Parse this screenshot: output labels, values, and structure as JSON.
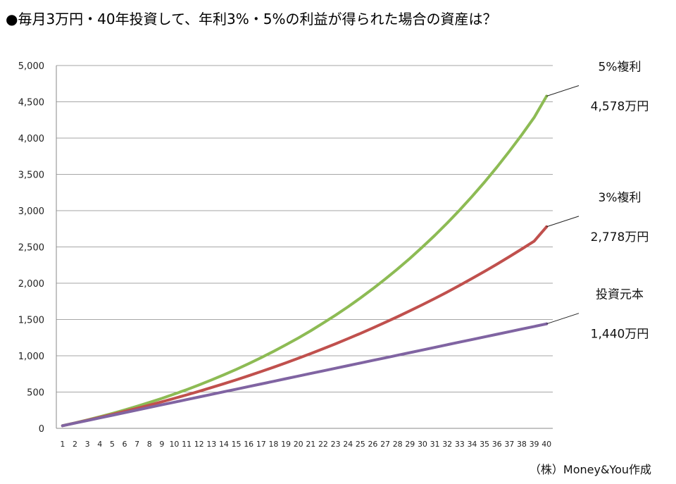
{
  "chart_data": {
    "type": "line",
    "title": "●毎月3万円・40年投資して、年利3%・5%の利益が得られた場合の資産は？",
    "xlabel": "",
    "ylabel": "",
    "x": [
      1,
      2,
      3,
      4,
      5,
      6,
      7,
      8,
      9,
      10,
      11,
      12,
      13,
      14,
      15,
      16,
      17,
      18,
      19,
      20,
      21,
      22,
      23,
      24,
      25,
      26,
      27,
      28,
      29,
      30,
      31,
      32,
      33,
      34,
      35,
      36,
      37,
      38,
      39,
      40
    ],
    "ylim": [
      0,
      5000
    ],
    "yticks": [
      0,
      500,
      1000,
      1500,
      2000,
      2500,
      3000,
      3500,
      4000,
      4500,
      5000
    ],
    "ytick_labels": [
      "0",
      "500",
      "1,000",
      "1,500",
      "2,000",
      "2,500",
      "3,000",
      "3,500",
      "4,000",
      "4,500",
      "5,000"
    ],
    "grid": true,
    "legend": "none (direct labels at right)",
    "series": [
      {
        "name": "5%複利",
        "end_label": "4,578万円",
        "color": "#8dbb54",
        "values": [
          37,
          75,
          116,
          159,
          205,
          253,
          304,
          357,
          413,
          472,
          533,
          598,
          667,
          738,
          813,
          891,
          974,
          1060,
          1151,
          1246,
          1345,
          1450,
          1560,
          1675,
          1796,
          1923,
          2057,
          2197,
          2344,
          2499,
          2660,
          2830,
          3009,
          3196,
          3393,
          3600,
          3817,
          4045,
          4284,
          4578
        ]
      },
      {
        "name": "3%複利",
        "end_label": "2,778万円",
        "color": "#c0504d",
        "values": [
          36,
          74,
          112,
          151,
          191,
          233,
          276,
          320,
          366,
          413,
          461,
          511,
          562,
          615,
          669,
          725,
          783,
          842,
          903,
          966,
          1030,
          1097,
          1165,
          1236,
          1308,
          1383,
          1460,
          1539,
          1620,
          1704,
          1790,
          1879,
          1971,
          2065,
          2162,
          2262,
          2365,
          2471,
          2580,
          2778
        ]
      },
      {
        "name": "投資元本",
        "end_label": "1,440万円",
        "color": "#8064a2",
        "values": [
          36,
          72,
          108,
          144,
          180,
          216,
          252,
          288,
          324,
          360,
          396,
          432,
          468,
          504,
          540,
          576,
          612,
          648,
          684,
          720,
          756,
          792,
          828,
          864,
          900,
          936,
          972,
          1008,
          1044,
          1080,
          1116,
          1152,
          1188,
          1224,
          1260,
          1296,
          1332,
          1368,
          1404,
          1440
        ]
      }
    ],
    "credit": "（株）Money&You作成"
  }
}
